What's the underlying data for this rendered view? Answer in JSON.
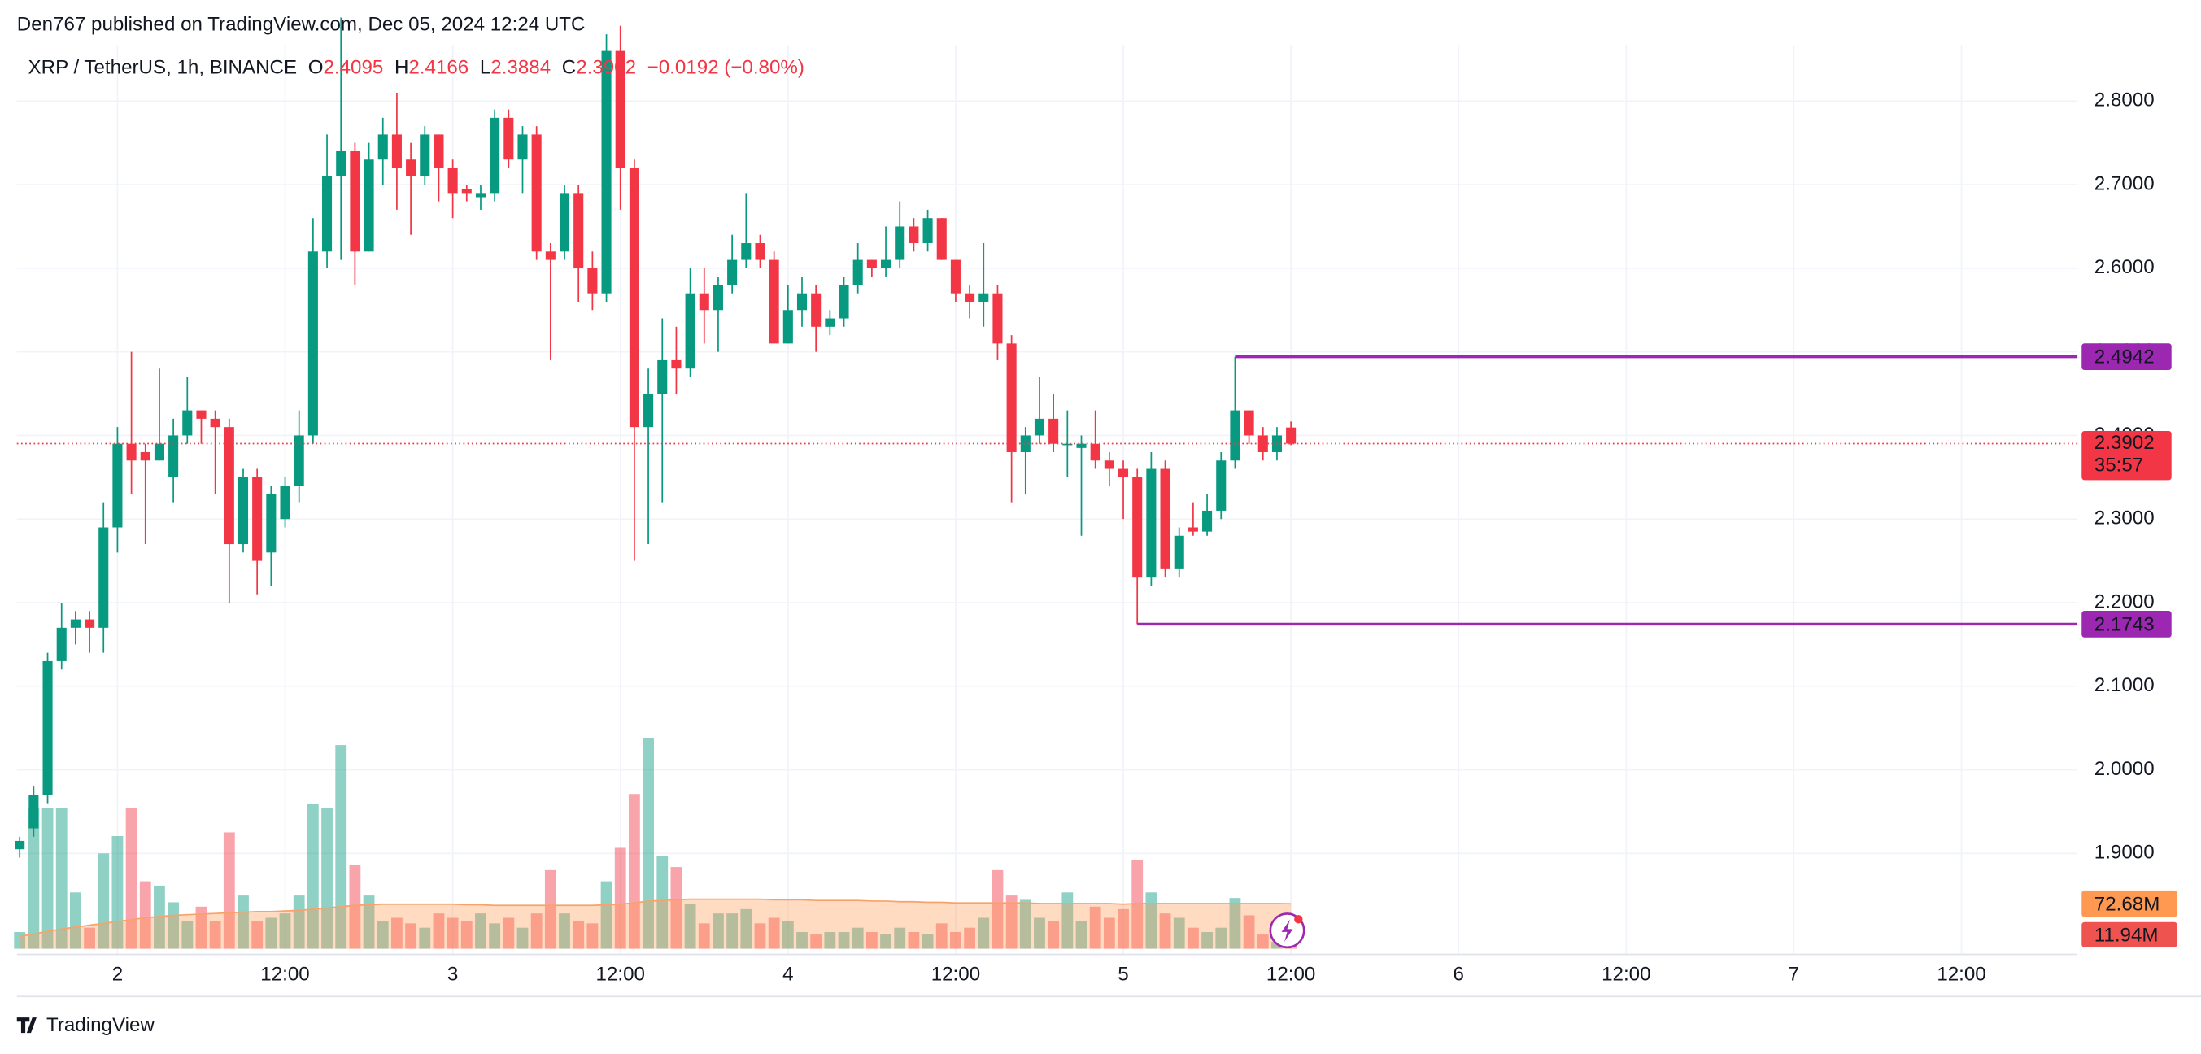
{
  "header": {
    "publisher": "Den767 published on TradingView.com, Dec 05, 2024 12:24 UTC",
    "logo": "TradingView"
  },
  "chart_data": {
    "type": "candlestick",
    "title": "XRP / TetherUS, 1h, BINANCE",
    "ohlc_letters": [
      "O",
      "H",
      "L",
      "C"
    ],
    "change": "−0.0192 (−0.80%)",
    "countdown": "35:57",
    "categories": [
      null,
      null,
      null,
      null,
      null,
      null,
      null,
      null,
      null,
      null,
      null,
      null,
      null,
      null,
      null,
      null,
      null,
      null,
      null,
      null,
      null,
      null,
      null,
      null,
      null,
      null,
      null,
      null,
      null,
      null,
      null,
      null,
      null,
      null,
      null,
      null,
      null,
      null,
      null,
      null,
      null,
      null,
      null,
      null,
      null,
      null,
      null,
      null,
      null,
      null,
      null,
      null,
      null,
      null,
      null,
      null,
      null,
      null,
      null,
      null,
      null,
      null,
      null,
      null,
      null,
      null,
      null,
      null,
      null,
      null,
      null,
      null,
      null,
      null,
      null,
      null,
      null,
      null,
      null,
      null,
      null,
      null,
      null,
      null,
      null,
      null,
      null,
      null,
      null,
      null,
      null,
      null
    ],
    "open": [
      1.905,
      1.93,
      1.97,
      2.13,
      2.17,
      2.18,
      2.17,
      2.29,
      2.39,
      2.38,
      2.37,
      2.35,
      2.4,
      2.43,
      2.42,
      2.41,
      2.27,
      2.35,
      2.26,
      2.3,
      2.34,
      2.4,
      2.62,
      2.71,
      2.74,
      2.62,
      2.73,
      2.76,
      2.73,
      2.71,
      2.76,
      2.72,
      2.695,
      2.685,
      2.69,
      2.78,
      2.73,
      2.76,
      2.62,
      2.62,
      2.69,
      2.6,
      2.57,
      2.86,
      2.72,
      2.41,
      2.45,
      2.49,
      2.48,
      2.57,
      2.55,
      2.58,
      2.61,
      2.63,
      2.61,
      2.51,
      2.55,
      2.57,
      2.53,
      2.54,
      2.58,
      2.61,
      2.6,
      2.61,
      2.65,
      2.63,
      2.66,
      2.61,
      2.57,
      2.56,
      2.57,
      2.51,
      2.38,
      2.4,
      2.42,
      2.39,
      2.385,
      2.39,
      2.37,
      2.36,
      2.35,
      2.23,
      2.36,
      2.24,
      2.29,
      2.285,
      2.31,
      2.37,
      2.43,
      2.4,
      2.38,
      2.4095
    ],
    "high": [
      1.92,
      1.98,
      2.14,
      2.2,
      2.19,
      2.19,
      2.32,
      2.41,
      2.5,
      2.39,
      2.48,
      2.42,
      2.47,
      2.43,
      2.43,
      2.42,
      2.36,
      2.36,
      2.34,
      2.35,
      2.43,
      2.66,
      2.76,
      2.9,
      2.75,
      2.75,
      2.78,
      2.81,
      2.75,
      2.77,
      2.76,
      2.73,
      2.7,
      2.7,
      2.79,
      2.79,
      2.77,
      2.77,
      2.63,
      2.7,
      2.7,
      2.62,
      2.88,
      2.89,
      2.73,
      2.48,
      2.54,
      2.53,
      2.6,
      2.6,
      2.59,
      2.64,
      2.69,
      2.64,
      2.62,
      2.58,
      2.59,
      2.58,
      2.55,
      2.59,
      2.63,
      2.61,
      2.65,
      2.68,
      2.66,
      2.67,
      2.66,
      2.61,
      2.58,
      2.63,
      2.58,
      2.52,
      2.41,
      2.47,
      2.45,
      2.43,
      2.4,
      2.43,
      2.38,
      2.37,
      2.36,
      2.38,
      2.37,
      2.29,
      2.32,
      2.33,
      2.38,
      2.4942,
      2.43,
      2.41,
      2.41,
      2.4166
    ],
    "low": [
      1.895,
      1.92,
      1.96,
      2.12,
      2.15,
      2.14,
      2.14,
      2.26,
      2.33,
      2.27,
      2.37,
      2.32,
      2.39,
      2.39,
      2.33,
      2.2,
      2.26,
      2.21,
      2.22,
      2.29,
      2.32,
      2.39,
      2.6,
      2.61,
      2.58,
      2.62,
      2.7,
      2.67,
      2.64,
      2.7,
      2.68,
      2.66,
      2.68,
      2.67,
      2.68,
      2.72,
      2.69,
      2.61,
      2.49,
      2.61,
      2.56,
      2.55,
      2.56,
      2.67,
      2.25,
      2.27,
      2.32,
      2.45,
      2.47,
      2.51,
      2.5,
      2.57,
      2.6,
      2.6,
      2.51,
      2.51,
      2.53,
      2.5,
      2.52,
      2.53,
      2.57,
      2.59,
      2.59,
      2.6,
      2.62,
      2.62,
      2.61,
      2.56,
      2.54,
      2.53,
      2.49,
      2.32,
      2.33,
      2.39,
      2.38,
      2.35,
      2.28,
      2.36,
      2.34,
      2.3,
      2.1743,
      2.22,
      2.23,
      2.23,
      2.28,
      2.28,
      2.3,
      2.36,
      2.39,
      2.37,
      2.37,
      2.3884
    ],
    "close": [
      1.915,
      1.97,
      2.13,
      2.17,
      2.18,
      2.17,
      2.29,
      2.39,
      2.37,
      2.37,
      2.39,
      2.4,
      2.43,
      2.42,
      2.41,
      2.27,
      2.35,
      2.25,
      2.33,
      2.34,
      2.4,
      2.62,
      2.71,
      2.74,
      2.62,
      2.73,
      2.76,
      2.72,
      2.71,
      2.76,
      2.72,
      2.69,
      2.69,
      2.69,
      2.78,
      2.73,
      2.76,
      2.62,
      2.61,
      2.69,
      2.6,
      2.57,
      2.86,
      2.72,
      2.41,
      2.45,
      2.49,
      2.48,
      2.57,
      2.55,
      2.58,
      2.61,
      2.63,
      2.61,
      2.51,
      2.55,
      2.57,
      2.53,
      2.54,
      2.58,
      2.61,
      2.6,
      2.61,
      2.65,
      2.63,
      2.66,
      2.61,
      2.57,
      2.56,
      2.57,
      2.51,
      2.38,
      2.4,
      2.42,
      2.39,
      2.39,
      2.39,
      2.37,
      2.36,
      2.35,
      2.23,
      2.36,
      2.24,
      2.28,
      2.285,
      2.31,
      2.37,
      2.43,
      2.4,
      2.38,
      2.4,
      2.3902
    ],
    "up_color": "#089981",
    "down_color": "#f23645",
    "volume": [
      27,
      227,
      227,
      227,
      91,
      34,
      154,
      182,
      227,
      109,
      102,
      75,
      45,
      68,
      45,
      188,
      86,
      45,
      50,
      57,
      86,
      234,
      227,
      329,
      136,
      86,
      45,
      50,
      41,
      34,
      57,
      50,
      45,
      57,
      41,
      50,
      34,
      57,
      127,
      57,
      45,
      41,
      109,
      163,
      250,
      340,
      150,
      132,
      73,
      41,
      57,
      57,
      64,
      41,
      50,
      45,
      27,
      23,
      27,
      27,
      34,
      27,
      23,
      34,
      27,
      23,
      41,
      27,
      34,
      50,
      127,
      86,
      79,
      50,
      45,
      91,
      45,
      68,
      50,
      64,
      143,
      91,
      57,
      50,
      34,
      27,
      34,
      82,
      54,
      23,
      11,
      11.94
    ],
    "volume_ma": [
      20,
      24,
      28,
      32,
      35,
      38,
      41,
      44,
      47,
      50,
      52,
      54,
      55,
      56,
      57,
      58,
      59,
      60,
      60,
      61,
      62,
      64,
      66,
      68,
      70,
      71,
      72,
      72,
      72,
      72,
      72,
      72,
      71,
      71,
      70,
      70,
      70,
      70,
      70,
      70,
      70,
      70,
      71,
      72,
      74,
      77,
      78,
      79,
      80,
      80,
      80,
      80,
      80,
      80,
      79,
      79,
      79,
      78,
      78,
      78,
      78,
      77,
      77,
      76,
      76,
      75,
      75,
      74,
      74,
      74,
      74,
      74,
      74,
      73,
      73,
      73,
      73,
      73,
      73,
      72,
      73,
      73,
      73,
      73,
      73,
      73,
      73,
      73,
      73,
      73,
      73,
      72.68
    ],
    "volume_badge": {
      "value": 11.94,
      "label": "11.94M"
    },
    "volume_ma_badge": {
      "value": 72.68,
      "label": "72.68M"
    },
    "volume_ylim": [
      0,
      680
    ],
    "levels": [
      2.4942,
      2.1743
    ],
    "level_color": "#9c27b0",
    "ylim": [
      1.7826,
      2.8672
    ],
    "yticks": [
      {
        "value": 1.9,
        "label": "1.9000"
      },
      {
        "value": 2.0,
        "label": "2.0000"
      },
      {
        "value": 2.1,
        "label": "2.1000"
      },
      {
        "value": 2.2,
        "label": "2.2000"
      },
      {
        "value": 2.3,
        "label": "2.3000"
      },
      {
        "value": 2.4,
        "label": "2.4000"
      },
      {
        "value": 2.5,
        "label": "2.5000"
      },
      {
        "value": 2.6,
        "label": "2.6000"
      },
      {
        "value": 2.7,
        "label": "2.7000"
      },
      {
        "value": 2.8,
        "label": "2.8000"
      }
    ],
    "xlim": [
      -0.2,
      147.3
    ],
    "xticks": [
      {
        "value": 7,
        "label": "2"
      },
      {
        "value": 19,
        "label": "12:00"
      },
      {
        "value": 31,
        "label": "3"
      },
      {
        "value": 43,
        "label": "12:00"
      },
      {
        "value": 55,
        "label": "4"
      },
      {
        "value": 67,
        "label": "12:00"
      },
      {
        "value": 79,
        "label": "5"
      },
      {
        "value": 91,
        "label": "12:00"
      },
      {
        "value": 103,
        "label": "6"
      },
      {
        "value": 115,
        "label": "12:00"
      },
      {
        "value": 127,
        "label": "7"
      },
      {
        "value": 139,
        "label": "12:00"
      }
    ],
    "grid": true
  }
}
